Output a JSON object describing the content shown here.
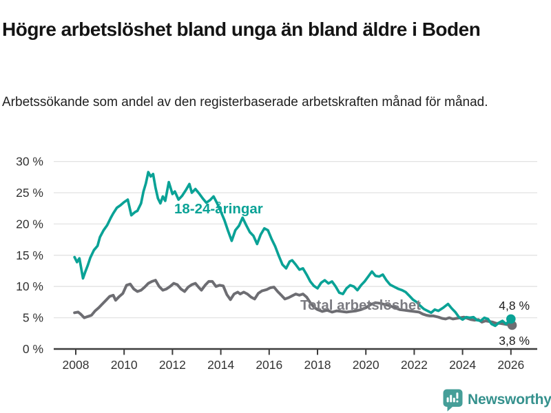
{
  "header": {
    "title": "Högre arbetslöshet bland unga än bland äldre i Boden",
    "subtitle": "Arbetssökande som andel av den registerbaserade arbetskraften månad för månad."
  },
  "chart_data": {
    "type": "line",
    "title": "",
    "xlabel": "",
    "ylabel": "",
    "x_axis": {
      "tick_values": [
        2008,
        2010,
        2012,
        2014,
        2016,
        2018,
        2020,
        2022,
        2024,
        2026
      ],
      "tick_labels": [
        "2008",
        "2010",
        "2012",
        "2014",
        "2016",
        "2018",
        "2020",
        "2022",
        "2024",
        "2026"
      ],
      "range": [
        2007.1,
        2027.1
      ]
    },
    "y_axis": {
      "tick_values": [
        0,
        5,
        10,
        15,
        20,
        25,
        30
      ],
      "tick_labels": [
        "0 %",
        "5 %",
        "10 %",
        "15 %",
        "20 %",
        "25 %",
        "30 %"
      ],
      "range": [
        0,
        30
      ],
      "grid": true
    },
    "series": [
      {
        "name": "Total arbetslöshet",
        "color": "#6d6d72",
        "label_color": "#7c7c82",
        "end_label": "3,8 %",
        "end_value": 3.8,
        "points": [
          [
            2007.95,
            5.8
          ],
          [
            2008.1,
            5.9
          ],
          [
            2008.2,
            5.6
          ],
          [
            2008.35,
            5.0
          ],
          [
            2008.5,
            5.2
          ],
          [
            2008.65,
            5.4
          ],
          [
            2008.8,
            6.1
          ],
          [
            2008.95,
            6.6
          ],
          [
            2009.1,
            7.2
          ],
          [
            2009.25,
            7.8
          ],
          [
            2009.4,
            8.4
          ],
          [
            2009.55,
            8.6
          ],
          [
            2009.65,
            7.8
          ],
          [
            2009.8,
            8.4
          ],
          [
            2009.95,
            8.9
          ],
          [
            2010.1,
            10.2
          ],
          [
            2010.25,
            10.4
          ],
          [
            2010.4,
            9.6
          ],
          [
            2010.55,
            9.2
          ],
          [
            2010.7,
            9.4
          ],
          [
            2010.85,
            9.9
          ],
          [
            2011.0,
            10.5
          ],
          [
            2011.15,
            10.8
          ],
          [
            2011.3,
            11.0
          ],
          [
            2011.45,
            10.0
          ],
          [
            2011.6,
            9.4
          ],
          [
            2011.75,
            9.6
          ],
          [
            2011.9,
            10.0
          ],
          [
            2012.05,
            10.5
          ],
          [
            2012.2,
            10.3
          ],
          [
            2012.35,
            9.6
          ],
          [
            2012.5,
            9.2
          ],
          [
            2012.65,
            9.9
          ],
          [
            2012.8,
            10.3
          ],
          [
            2012.95,
            10.5
          ],
          [
            2013.1,
            9.8
          ],
          [
            2013.2,
            9.4
          ],
          [
            2013.35,
            10.2
          ],
          [
            2013.5,
            10.8
          ],
          [
            2013.65,
            10.8
          ],
          [
            2013.8,
            10.0
          ],
          [
            2013.95,
            10.2
          ],
          [
            2014.1,
            10.1
          ],
          [
            2014.25,
            8.7
          ],
          [
            2014.4,
            7.9
          ],
          [
            2014.55,
            8.8
          ],
          [
            2014.7,
            9.1
          ],
          [
            2014.8,
            8.8
          ],
          [
            2014.95,
            9.1
          ],
          [
            2015.1,
            8.8
          ],
          [
            2015.25,
            8.3
          ],
          [
            2015.4,
            8.0
          ],
          [
            2015.55,
            8.9
          ],
          [
            2015.7,
            9.3
          ],
          [
            2015.9,
            9.5
          ],
          [
            2016.05,
            9.8
          ],
          [
            2016.2,
            9.9
          ],
          [
            2016.35,
            9.2
          ],
          [
            2016.5,
            8.6
          ],
          [
            2016.65,
            8.0
          ],
          [
            2016.8,
            8.2
          ],
          [
            2016.95,
            8.5
          ],
          [
            2017.1,
            8.8
          ],
          [
            2017.25,
            8.6
          ],
          [
            2017.4,
            8.8
          ],
          [
            2017.55,
            8.3
          ],
          [
            2017.7,
            7.4
          ],
          [
            2017.85,
            6.7
          ],
          [
            2018.0,
            6.3
          ],
          [
            2018.2,
            6.0
          ],
          [
            2018.4,
            6.2
          ],
          [
            2018.6,
            5.9
          ],
          [
            2018.8,
            6.1
          ],
          [
            2019.0,
            6.0
          ],
          [
            2019.2,
            5.9
          ],
          [
            2019.4,
            6.0
          ],
          [
            2019.6,
            6.1
          ],
          [
            2019.8,
            6.3
          ],
          [
            2020.0,
            6.6
          ],
          [
            2020.2,
            7.1
          ],
          [
            2020.4,
            7.4
          ],
          [
            2020.6,
            7.3
          ],
          [
            2020.8,
            7.1
          ],
          [
            2021.0,
            6.9
          ],
          [
            2021.2,
            6.6
          ],
          [
            2021.4,
            6.3
          ],
          [
            2021.6,
            6.2
          ],
          [
            2021.8,
            6.1
          ],
          [
            2022.0,
            6.0
          ],
          [
            2022.2,
            5.9
          ],
          [
            2022.35,
            5.6
          ],
          [
            2022.5,
            5.4
          ],
          [
            2022.65,
            5.3
          ],
          [
            2022.8,
            5.3
          ],
          [
            2023.0,
            5.1
          ],
          [
            2023.15,
            4.9
          ],
          [
            2023.3,
            4.8
          ],
          [
            2023.45,
            5.0
          ],
          [
            2023.6,
            4.8
          ],
          [
            2023.75,
            4.9
          ],
          [
            2023.9,
            5.0
          ],
          [
            2024.05,
            5.1
          ],
          [
            2024.2,
            4.9
          ],
          [
            2024.35,
            4.7
          ],
          [
            2024.5,
            4.6
          ],
          [
            2024.65,
            4.7
          ],
          [
            2024.8,
            4.3
          ],
          [
            2024.95,
            4.5
          ],
          [
            2025.1,
            4.4
          ],
          [
            2025.25,
            4.3
          ],
          [
            2025.4,
            4.1
          ],
          [
            2025.55,
            4.1
          ],
          [
            2025.7,
            4.0
          ],
          [
            2025.85,
            3.9
          ],
          [
            2026.05,
            3.8
          ]
        ]
      },
      {
        "name": "18-24-åringar",
        "color": "#0aa296",
        "label_color": "#0aa296",
        "end_label": "4,8 %",
        "end_value": 4.8,
        "points": [
          [
            2007.95,
            14.7
          ],
          [
            2008.05,
            13.9
          ],
          [
            2008.15,
            14.5
          ],
          [
            2008.3,
            11.3
          ],
          [
            2008.4,
            12.4
          ],
          [
            2008.5,
            13.4
          ],
          [
            2008.6,
            14.6
          ],
          [
            2008.75,
            15.8
          ],
          [
            2008.9,
            16.5
          ],
          [
            2009.0,
            17.9
          ],
          [
            2009.15,
            19.0
          ],
          [
            2009.3,
            19.8
          ],
          [
            2009.45,
            21.0
          ],
          [
            2009.55,
            21.7
          ],
          [
            2009.7,
            22.6
          ],
          [
            2009.85,
            23.0
          ],
          [
            2010.0,
            23.5
          ],
          [
            2010.15,
            23.9
          ],
          [
            2010.3,
            21.4
          ],
          [
            2010.45,
            21.9
          ],
          [
            2010.55,
            22.1
          ],
          [
            2010.7,
            23.3
          ],
          [
            2010.8,
            25.2
          ],
          [
            2010.9,
            26.5
          ],
          [
            2011.0,
            28.3
          ],
          [
            2011.1,
            27.6
          ],
          [
            2011.2,
            28.0
          ],
          [
            2011.3,
            25.8
          ],
          [
            2011.4,
            24.1
          ],
          [
            2011.5,
            23.3
          ],
          [
            2011.6,
            24.4
          ],
          [
            2011.7,
            23.7
          ],
          [
            2011.85,
            26.7
          ],
          [
            2012.0,
            24.8
          ],
          [
            2012.1,
            25.2
          ],
          [
            2012.25,
            23.9
          ],
          [
            2012.4,
            24.5
          ],
          [
            2012.55,
            25.4
          ],
          [
            2012.7,
            26.4
          ],
          [
            2012.8,
            25.0
          ],
          [
            2012.95,
            25.6
          ],
          [
            2013.1,
            24.9
          ],
          [
            2013.25,
            24.1
          ],
          [
            2013.4,
            23.4
          ],
          [
            2013.55,
            23.8
          ],
          [
            2013.7,
            24.4
          ],
          [
            2013.85,
            23.3
          ],
          [
            2014.0,
            22.0
          ],
          [
            2014.15,
            20.6
          ],
          [
            2014.3,
            18.9
          ],
          [
            2014.45,
            17.3
          ],
          [
            2014.6,
            19.0
          ],
          [
            2014.75,
            19.7
          ],
          [
            2014.9,
            21.0
          ],
          [
            2015.05,
            19.8
          ],
          [
            2015.2,
            18.7
          ],
          [
            2015.35,
            18.1
          ],
          [
            2015.5,
            16.8
          ],
          [
            2015.65,
            18.3
          ],
          [
            2015.8,
            19.3
          ],
          [
            2015.95,
            19.0
          ],
          [
            2016.1,
            17.6
          ],
          [
            2016.25,
            16.4
          ],
          [
            2016.4,
            14.9
          ],
          [
            2016.55,
            13.5
          ],
          [
            2016.7,
            12.9
          ],
          [
            2016.85,
            14.0
          ],
          [
            2016.95,
            14.2
          ],
          [
            2017.1,
            13.5
          ],
          [
            2017.25,
            12.7
          ],
          [
            2017.4,
            12.9
          ],
          [
            2017.55,
            11.9
          ],
          [
            2017.7,
            10.8
          ],
          [
            2017.85,
            10.1
          ],
          [
            2018.0,
            9.7
          ],
          [
            2018.15,
            10.6
          ],
          [
            2018.3,
            11.0
          ],
          [
            2018.45,
            10.5
          ],
          [
            2018.6,
            10.8
          ],
          [
            2018.75,
            10.0
          ],
          [
            2018.9,
            9.0
          ],
          [
            2019.05,
            8.8
          ],
          [
            2019.2,
            9.7
          ],
          [
            2019.35,
            10.2
          ],
          [
            2019.5,
            10.0
          ],
          [
            2019.65,
            9.4
          ],
          [
            2019.8,
            10.2
          ],
          [
            2019.95,
            10.8
          ],
          [
            2020.1,
            11.6
          ],
          [
            2020.25,
            12.4
          ],
          [
            2020.4,
            11.7
          ],
          [
            2020.55,
            11.6
          ],
          [
            2020.7,
            11.9
          ],
          [
            2020.85,
            11.0
          ],
          [
            2021.0,
            10.3
          ],
          [
            2021.2,
            9.9
          ],
          [
            2021.35,
            9.6
          ],
          [
            2021.5,
            9.4
          ],
          [
            2021.65,
            9.1
          ],
          [
            2021.8,
            8.5
          ],
          [
            2021.95,
            7.9
          ],
          [
            2022.1,
            7.5
          ],
          [
            2022.25,
            6.9
          ],
          [
            2022.4,
            6.4
          ],
          [
            2022.55,
            6.1
          ],
          [
            2022.7,
            5.8
          ],
          [
            2022.85,
            6.3
          ],
          [
            2023.0,
            6.1
          ],
          [
            2023.2,
            6.6
          ],
          [
            2023.4,
            7.2
          ],
          [
            2023.55,
            6.5
          ],
          [
            2023.7,
            5.9
          ],
          [
            2023.85,
            5.1
          ],
          [
            2024.0,
            4.7
          ],
          [
            2024.15,
            5.1
          ],
          [
            2024.3,
            5.0
          ],
          [
            2024.45,
            5.1
          ],
          [
            2024.6,
            4.6
          ],
          [
            2024.75,
            4.5
          ],
          [
            2024.9,
            5.0
          ],
          [
            2025.05,
            4.8
          ],
          [
            2025.2,
            4.0
          ],
          [
            2025.35,
            3.7
          ],
          [
            2025.5,
            4.2
          ],
          [
            2025.65,
            4.5
          ],
          [
            2025.8,
            4.0
          ],
          [
            2026.0,
            4.8
          ]
        ]
      }
    ],
    "colors": {
      "grid": "#e2e2e2",
      "axis": "#3c3c3c",
      "tick_label": "#333333",
      "end_label_text": "#1c1c1c",
      "background": "#ffffff"
    }
  },
  "footer": {
    "brand": "Newsworthy",
    "brand_color": "#35918d",
    "logo_icon": "bar-chart-speech-bubble-icon"
  }
}
